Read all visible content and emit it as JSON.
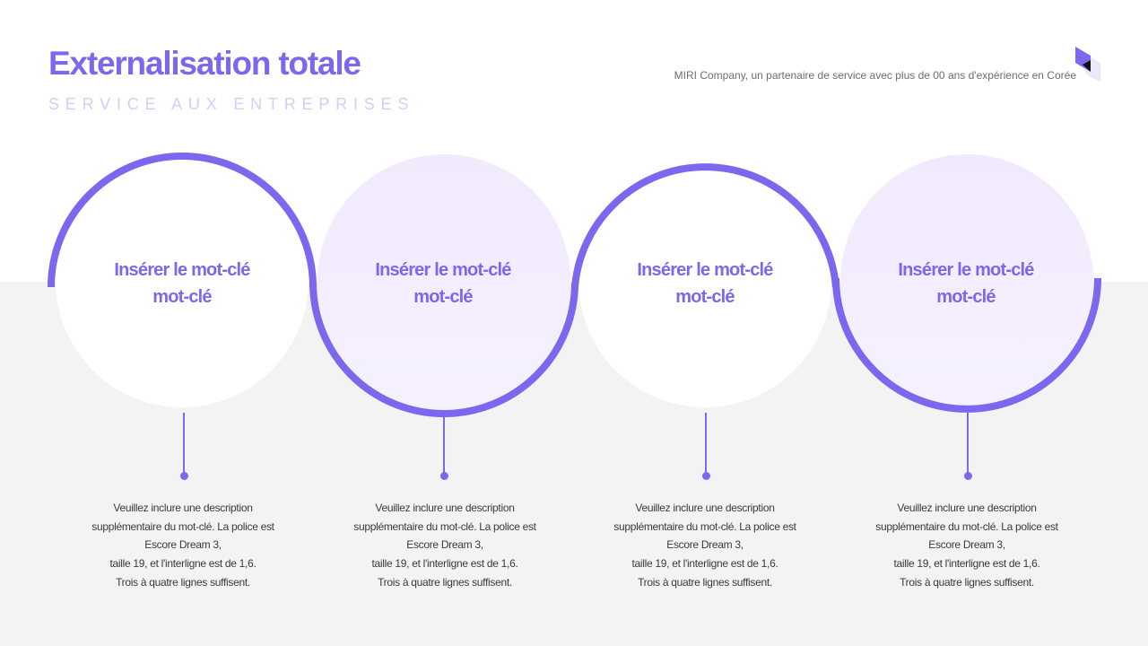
{
  "header": {
    "title": "Externalisation totale",
    "subtitle": "SERVICE AUX ENTREPRISES",
    "tagline": "MIRI Company, un partenaire de service avec plus de 00 ans d'expérience en Corée"
  },
  "colors": {
    "accent": "#7b68ee",
    "subtitle": "#d5cdf7",
    "circle_fill_light": "#f1e9fd",
    "band": "#f3f3f4"
  },
  "steps": [
    {
      "keyword_line1": "Insérer le mot-clé",
      "keyword_line2": "mot-clé",
      "desc": [
        "Veuillez inclure une description",
        "supplémentaire du mot-clé. La police est",
        "Escore Dream 3,",
        "taille 19, et l'interligne est de 1,6.",
        "Trois à quatre lignes suffisent."
      ]
    },
    {
      "keyword_line1": "Insérer le mot-clé",
      "keyword_line2": "mot-clé",
      "desc": [
        "Veuillez inclure une description",
        "supplémentaire du mot-clé. La police est",
        "Escore Dream 3,",
        "taille 19, et l'interligne est de 1,6.",
        "Trois à quatre lignes suffisent."
      ]
    },
    {
      "keyword_line1": "Insérer le mot-clé",
      "keyword_line2": "mot-clé",
      "desc": [
        "Veuillez inclure une description",
        "supplémentaire du mot-clé. La police est",
        "Escore Dream 3,",
        "taille 19, et l'interligne est de 1,6.",
        "Trois à quatre lignes suffisent."
      ]
    },
    {
      "keyword_line1": "Insérer le mot-clé",
      "keyword_line2": "mot-clé",
      "desc": [
        "Veuillez inclure une description",
        "supplémentaire du mot-clé. La police est",
        "Escore Dream 3,",
        "taille 19, et l'interligne est de 1,6.",
        "Trois à quatre lignes suffisent."
      ]
    }
  ]
}
